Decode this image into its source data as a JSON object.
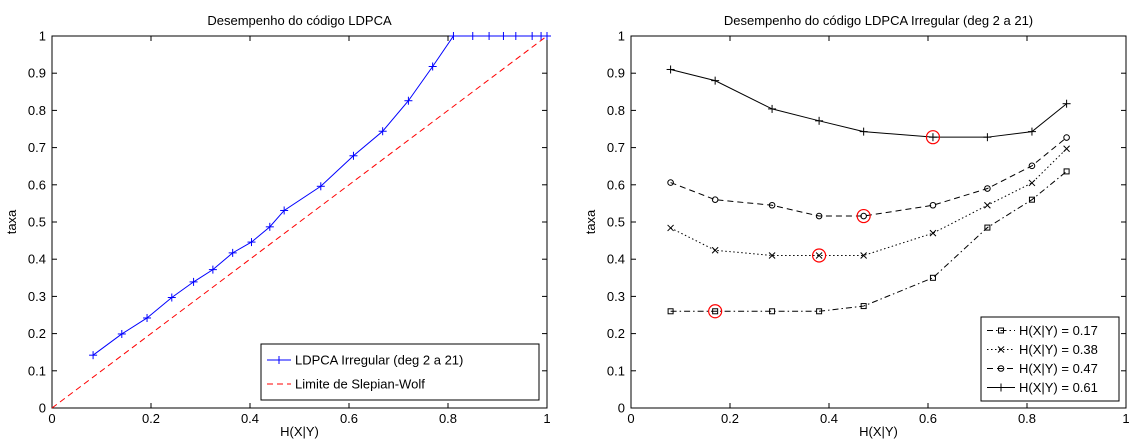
{
  "chart_data": [
    {
      "type": "line",
      "title": "Desempenho do código LDPCA",
      "xlabel": "H(X|Y)",
      "ylabel": "taxa",
      "xlim": [
        0,
        1
      ],
      "ylim": [
        0,
        1
      ],
      "xticks": [
        "0",
        "0.2",
        "0.4",
        "0.6",
        "0.8",
        "1"
      ],
      "yticks": [
        "0",
        "0.1",
        "0.2",
        "0.3",
        "0.4",
        "0.5",
        "0.6",
        "0.7",
        "0.8",
        "0.9",
        "1"
      ],
      "grid": false,
      "legend_position": "bottom-right",
      "series": [
        {
          "name": "LDPCA Irregular (deg 2 a 21)",
          "color": "#0000ff",
          "style": "solid",
          "marker": "plus",
          "x": [
            0.083,
            0.141,
            0.192,
            0.242,
            0.286,
            0.325,
            0.365,
            0.403,
            0.44,
            0.469,
            0.543,
            0.609,
            0.668,
            0.72,
            0.769,
            0.811,
            0.85,
            0.883,
            0.912,
            0.937,
            0.97,
            0.988,
            1.0
          ],
          "y": [
            0.142,
            0.199,
            0.242,
            0.297,
            0.339,
            0.372,
            0.417,
            0.446,
            0.487,
            0.531,
            0.596,
            0.678,
            0.744,
            0.826,
            0.918,
            1.0,
            1.0,
            1.0,
            1.0,
            1.0,
            1.0,
            1.0,
            1.0
          ]
        },
        {
          "name": "Limite de Slepian-Wolf",
          "color": "#ff0000",
          "style": "dashed",
          "marker": "none",
          "x": [
            0,
            1
          ],
          "y": [
            0,
            1
          ]
        }
      ]
    },
    {
      "type": "line",
      "title": "Desempenho do código LDPCA Irregular (deg 2 a 21)",
      "xlabel": "H(X|Y)",
      "ylabel": "taxa",
      "xlim": [
        0,
        1
      ],
      "ylim": [
        0,
        1
      ],
      "xticks": [
        "0",
        "0.2",
        "0.4",
        "0.6",
        "0.8",
        "1"
      ],
      "yticks": [
        "0",
        "0.1",
        "0.2",
        "0.3",
        "0.4",
        "0.5",
        "0.6",
        "0.7",
        "0.8",
        "0.9",
        "1"
      ],
      "grid": false,
      "legend_position": "bottom-right",
      "x": [
        0.08,
        0.17,
        0.285,
        0.38,
        0.47,
        0.61,
        0.72,
        0.81,
        0.88
      ],
      "series": [
        {
          "name": "H(X|Y) = 0.17",
          "color": "#000000",
          "style": "dashdot",
          "marker": "square",
          "y": [
            0.26,
            0.26,
            0.26,
            0.26,
            0.274,
            0.35,
            0.485,
            0.56,
            0.636
          ],
          "highlight_x": 0.17
        },
        {
          "name": "H(X|Y) = 0.38",
          "color": "#000000",
          "style": "dotted",
          "marker": "x",
          "y": [
            0.484,
            0.424,
            0.41,
            0.41,
            0.41,
            0.47,
            0.545,
            0.605,
            0.697
          ],
          "highlight_x": 0.38
        },
        {
          "name": "H(X|Y) = 0.47",
          "color": "#000000",
          "style": "dashed",
          "marker": "circle",
          "y": [
            0.606,
            0.56,
            0.545,
            0.516,
            0.516,
            0.545,
            0.59,
            0.651,
            0.727
          ],
          "highlight_x": 0.47
        },
        {
          "name": "H(X|Y) = 0.61",
          "color": "#000000",
          "style": "solid",
          "marker": "plus",
          "y": [
            0.91,
            0.88,
            0.804,
            0.772,
            0.743,
            0.728,
            0.728,
            0.743,
            0.818
          ],
          "highlight_x": 0.61
        }
      ],
      "highlight_color": "#ff0000"
    }
  ]
}
